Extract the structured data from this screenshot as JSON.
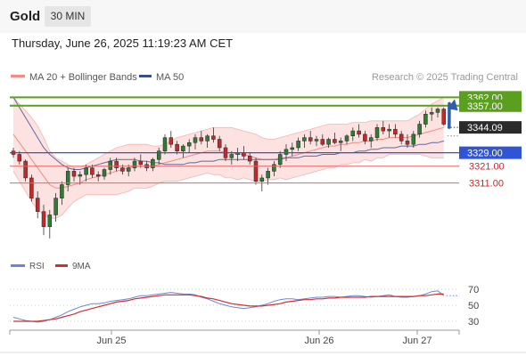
{
  "header": {
    "title": "Gold",
    "timeframe": "30 MIN",
    "datetime": "Thursday, June 26, 2025 11:19:23 AM CET"
  },
  "legend": {
    "bb_label": "MA 20 + Bollinger Bands",
    "ma50_label": "MA 50",
    "credit": "Research © 2025 Trading Central"
  },
  "colors": {
    "candle_up": "#2e7d32",
    "candle_down": "#c62828",
    "bb_fill": "#fde2e2",
    "ma20": "#f28b82",
    "ma50": "#5c6b9e",
    "resistance": "#5aa01e",
    "pivot": "#2f55d4",
    "support": "#e06666",
    "arrow": "#2e5fa8",
    "rsi": "#6b86d6",
    "rsi_ma": "#d32f2f"
  },
  "chart_data": [
    {
      "type": "candlestick",
      "title": "",
      "y_range": [
        3270,
        3368
      ],
      "x_labels": [
        "Jun 25",
        "Jun 26",
        "Jun 27"
      ],
      "candles_ohlc": [
        [
          3330,
          3332,
          3326,
          3328
        ],
        [
          3328,
          3330,
          3322,
          3324
        ],
        [
          3324,
          3325,
          3312,
          3314
        ],
        [
          3314,
          3316,
          3300,
          3302
        ],
        [
          3302,
          3306,
          3290,
          3294
        ],
        [
          3294,
          3298,
          3280,
          3285
        ],
        [
          3285,
          3295,
          3278,
          3292
        ],
        [
          3292,
          3305,
          3288,
          3302
        ],
        [
          3302,
          3312,
          3298,
          3310
        ],
        [
          3310,
          3320,
          3306,
          3318
        ],
        [
          3318,
          3320,
          3312,
          3315
        ],
        [
          3315,
          3318,
          3310,
          3316
        ],
        [
          3316,
          3322,
          3312,
          3320
        ],
        [
          3320,
          3322,
          3314,
          3316
        ],
        [
          3316,
          3318,
          3312,
          3315
        ],
        [
          3315,
          3320,
          3313,
          3319
        ],
        [
          3319,
          3326,
          3316,
          3324
        ],
        [
          3324,
          3326,
          3318,
          3320
        ],
        [
          3320,
          3322,
          3316,
          3318
        ],
        [
          3318,
          3322,
          3315,
          3320
        ],
        [
          3320,
          3326,
          3318,
          3324
        ],
        [
          3324,
          3328,
          3320,
          3322
        ],
        [
          3322,
          3324,
          3318,
          3320
        ],
        [
          3320,
          3326,
          3318,
          3325
        ],
        [
          3325,
          3332,
          3322,
          3330
        ],
        [
          3330,
          3340,
          3328,
          3338
        ],
        [
          3338,
          3342,
          3332,
          3334
        ],
        [
          3334,
          3336,
          3328,
          3330
        ],
        [
          3330,
          3334,
          3326,
          3333
        ],
        [
          3333,
          3337,
          3329,
          3335
        ],
        [
          3335,
          3340,
          3331,
          3338
        ],
        [
          3338,
          3342,
          3334,
          3336
        ],
        [
          3336,
          3340,
          3332,
          3339
        ],
        [
          3339,
          3344,
          3335,
          3337
        ],
        [
          3337,
          3339,
          3330,
          3332
        ],
        [
          3332,
          3334,
          3324,
          3326
        ],
        [
          3326,
          3330,
          3322,
          3328
        ],
        [
          3328,
          3332,
          3324,
          3329
        ],
        [
          3329,
          3333,
          3325,
          3327
        ],
        [
          3327,
          3329,
          3322,
          3324
        ],
        [
          3324,
          3326,
          3310,
          3312
        ],
        [
          3312,
          3316,
          3306,
          3314
        ],
        [
          3314,
          3320,
          3310,
          3318
        ],
        [
          3318,
          3324,
          3315,
          3322
        ],
        [
          3322,
          3330,
          3320,
          3328
        ],
        [
          3328,
          3334,
          3324,
          3331
        ],
        [
          3331,
          3335,
          3327,
          3332
        ],
        [
          3332,
          3338,
          3330,
          3336
        ],
        [
          3336,
          3340,
          3332,
          3338
        ],
        [
          3338,
          3342,
          3334,
          3336
        ],
        [
          3336,
          3339,
          3333,
          3337
        ],
        [
          3337,
          3340,
          3333,
          3334
        ],
        [
          3334,
          3338,
          3332,
          3337
        ],
        [
          3337,
          3341,
          3334,
          3335
        ],
        [
          3335,
          3338,
          3330,
          3336
        ],
        [
          3336,
          3340,
          3334,
          3339
        ],
        [
          3339,
          3344,
          3336,
          3342
        ],
        [
          3342,
          3346,
          3338,
          3340
        ],
        [
          3340,
          3342,
          3334,
          3336
        ],
        [
          3336,
          3340,
          3332,
          3338
        ],
        [
          3338,
          3346,
          3336,
          3344
        ],
        [
          3344,
          3348,
          3340,
          3342
        ],
        [
          3342,
          3346,
          3338,
          3343
        ],
        [
          3343,
          3346,
          3338,
          3340
        ],
        [
          3340,
          3342,
          3334,
          3336
        ],
        [
          3336,
          3340,
          3332,
          3334
        ],
        [
          3334,
          3342,
          3332,
          3340
        ],
        [
          3340,
          3348,
          3338,
          3346
        ],
        [
          3346,
          3354,
          3344,
          3352
        ],
        [
          3352,
          3356,
          3348,
          3353
        ],
        [
          3353,
          3356,
          3350,
          3355
        ],
        [
          3355,
          3356,
          3345,
          3346
        ]
      ],
      "ma20": [
        3340,
        3335,
        3330,
        3325,
        3320,
        3315,
        3310,
        3308,
        3308,
        3309,
        3310,
        3311,
        3313,
        3314,
        3315,
        3316,
        3317,
        3318,
        3319,
        3320,
        3321,
        3321,
        3321,
        3321,
        3322,
        3323,
        3324,
        3325,
        3326,
        3327,
        3328,
        3329,
        3330,
        3330,
        3330,
        3329,
        3329,
        3328,
        3328,
        3327,
        3326,
        3325,
        3325,
        3325,
        3326,
        3326,
        3327,
        3328,
        3329,
        3330,
        3331,
        3332,
        3333,
        3333,
        3334,
        3334,
        3335,
        3335,
        3336,
        3336,
        3337,
        3337,
        3338,
        3338,
        3338,
        3338,
        3339,
        3340,
        3341,
        3342,
        3343,
        3344
      ],
      "bb_upper": [
        3362,
        3358,
        3354,
        3350,
        3345,
        3338,
        3330,
        3326,
        3324,
        3322,
        3320,
        3320,
        3322,
        3324,
        3326,
        3328,
        3330,
        3332,
        3333,
        3334,
        3334,
        3334,
        3334,
        3333,
        3333,
        3334,
        3336,
        3338,
        3339,
        3340,
        3341,
        3342,
        3343,
        3344,
        3344,
        3344,
        3344,
        3343,
        3342,
        3341,
        3340,
        3338,
        3337,
        3337,
        3338,
        3339,
        3340,
        3341,
        3342,
        3343,
        3344,
        3345,
        3346,
        3346,
        3346,
        3346,
        3347,
        3347,
        3347,
        3348,
        3348,
        3348,
        3348,
        3348,
        3348,
        3348,
        3350,
        3352,
        3355,
        3358,
        3360,
        3362
      ],
      "bb_lower": [
        3318,
        3312,
        3306,
        3300,
        3295,
        3292,
        3290,
        3290,
        3292,
        3296,
        3300,
        3302,
        3304,
        3304,
        3304,
        3304,
        3304,
        3304,
        3305,
        3306,
        3308,
        3308,
        3308,
        3309,
        3311,
        3312,
        3312,
        3312,
        3313,
        3314,
        3315,
        3316,
        3317,
        3316,
        3316,
        3314,
        3314,
        3313,
        3314,
        3313,
        3312,
        3312,
        3313,
        3313,
        3314,
        3313,
        3314,
        3315,
        3316,
        3317,
        3318,
        3319,
        3320,
        3320,
        3322,
        3322,
        3323,
        3323,
        3325,
        3324,
        3326,
        3326,
        3328,
        3328,
        3328,
        3328,
        3328,
        3328,
        3327,
        3326,
        3326,
        3326
      ],
      "ma50": [
        3362,
        3356,
        3350,
        3344,
        3338,
        3332,
        3328,
        3325,
        3322,
        3320,
        3319,
        3319,
        3320,
        3321,
        3322,
        3323,
        3324,
        3325,
        3325,
        3325,
        3325,
        3324,
        3324,
        3323,
        3323,
        3322,
        3322,
        3322,
        3322,
        3323,
        3323,
        3324,
        3324,
        3324,
        3325,
        3325,
        3325,
        3325,
        3325,
        3325,
        3325,
        3325,
        3325,
        3325,
        3325,
        3326,
        3326,
        3326,
        3327,
        3327,
        3327,
        3328,
        3328,
        3328,
        3329,
        3329,
        3329,
        3330,
        3330,
        3331,
        3331,
        3332,
        3332,
        3332,
        3333,
        3333,
        3333,
        3334,
        3334,
        3335,
        3335,
        3336
      ],
      "levels": [
        {
          "label": "3362.00",
          "value": 3362,
          "kind": "resistance"
        },
        {
          "label": "3357.00",
          "value": 3357,
          "kind": "resistance"
        },
        {
          "label": "3344.09",
          "value": 3344.09,
          "kind": "last"
        },
        {
          "label": "3329.00",
          "value": 3329,
          "kind": "pivot"
        },
        {
          "label": "3321.00",
          "value": 3321,
          "kind": "support"
        },
        {
          "label": "3311.00",
          "value": 3311,
          "kind": "support"
        }
      ],
      "forecast_arrow": {
        "from": 3344.09,
        "to": 3362
      }
    },
    {
      "type": "line",
      "title": "",
      "y_ticks": [
        30,
        50,
        70
      ],
      "y_range": [
        20,
        80
      ],
      "series": [
        {
          "name": "RSI",
          "values": [
            35,
            33,
            31,
            30,
            29,
            30,
            32,
            35,
            38,
            42,
            45,
            48,
            50,
            52,
            52,
            53,
            55,
            56,
            57,
            58,
            60,
            62,
            62,
            63,
            64,
            65,
            66,
            65,
            64,
            64,
            63,
            60,
            58,
            55,
            52,
            50,
            48,
            47,
            46,
            47,
            48,
            50,
            52,
            55,
            57,
            58,
            58,
            57,
            58,
            59,
            60,
            60,
            61,
            61,
            60,
            61,
            62,
            62,
            61,
            60,
            61,
            62,
            63,
            61,
            60,
            60,
            61,
            62,
            64,
            67,
            68,
            62
          ]
        },
        {
          "name": "9MA",
          "values": [
            30,
            30,
            30,
            30,
            30,
            31,
            32,
            33,
            35,
            37,
            39,
            42,
            44,
            46,
            48,
            50,
            52,
            54,
            55,
            56,
            58,
            59,
            60,
            61,
            62,
            63,
            63,
            63,
            63,
            63,
            62,
            61,
            59,
            58,
            56,
            54,
            52,
            51,
            50,
            49,
            49,
            49,
            50,
            51,
            52,
            54,
            55,
            56,
            57,
            57,
            58,
            58,
            59,
            59,
            60,
            60,
            60,
            60,
            60,
            61,
            61,
            61,
            61,
            61,
            61,
            61,
            61,
            62,
            62,
            63,
            64,
            64
          ]
        }
      ],
      "legend": [
        "RSI",
        "9MA"
      ]
    }
  ]
}
